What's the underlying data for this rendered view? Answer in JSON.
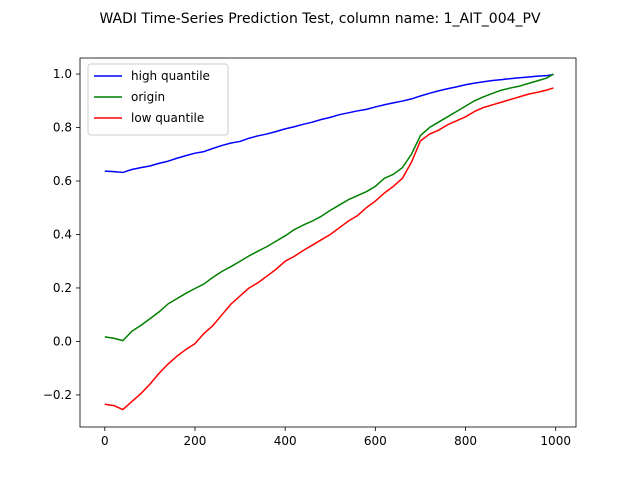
{
  "chart_data": {
    "type": "line",
    "title": "WADI Time-Series Prediction Test, column name: 1_AIT_004_PV",
    "xlabel": "",
    "ylabel": "",
    "xlim": [
      -55,
      1045
    ],
    "ylim": [
      -0.32,
      1.06
    ],
    "x_ticks": [
      0,
      200,
      400,
      600,
      800,
      1000
    ],
    "x_tick_labels": [
      "0",
      "200",
      "400",
      "600",
      "800",
      "1000"
    ],
    "y_ticks": [
      -0.2,
      0.0,
      0.2,
      0.4,
      0.6,
      0.8,
      1.0
    ],
    "y_tick_labels": [
      "−0.2",
      "0.0",
      "0.2",
      "0.4",
      "0.6",
      "0.8",
      "1.0"
    ],
    "grid": false,
    "legend_position": "top-left",
    "series": [
      {
        "name": "high quantile",
        "color": "#0000ff",
        "x": [
          0,
          20,
          40,
          60,
          80,
          100,
          120,
          140,
          160,
          180,
          200,
          220,
          240,
          260,
          280,
          300,
          320,
          340,
          360,
          380,
          400,
          420,
          440,
          460,
          480,
          500,
          520,
          540,
          560,
          580,
          600,
          620,
          640,
          660,
          680,
          700,
          720,
          740,
          760,
          780,
          800,
          820,
          840,
          860,
          880,
          900,
          920,
          940,
          960,
          980,
          995
        ],
        "values": [
          0.637,
          0.635,
          0.632,
          0.643,
          0.65,
          0.656,
          0.666,
          0.674,
          0.685,
          0.695,
          0.704,
          0.71,
          0.722,
          0.733,
          0.742,
          0.748,
          0.76,
          0.769,
          0.776,
          0.785,
          0.795,
          0.803,
          0.812,
          0.82,
          0.83,
          0.838,
          0.848,
          0.855,
          0.862,
          0.868,
          0.877,
          0.885,
          0.892,
          0.899,
          0.907,
          0.918,
          0.928,
          0.937,
          0.945,
          0.952,
          0.96,
          0.966,
          0.971,
          0.976,
          0.979,
          0.983,
          0.986,
          0.989,
          0.992,
          0.994,
          0.998
        ]
      },
      {
        "name": "origin",
        "color": "#008000",
        "x": [
          0,
          20,
          40,
          60,
          80,
          100,
          120,
          140,
          160,
          180,
          200,
          220,
          240,
          260,
          280,
          300,
          320,
          340,
          360,
          380,
          400,
          420,
          440,
          460,
          480,
          500,
          520,
          540,
          560,
          580,
          600,
          620,
          640,
          660,
          680,
          700,
          720,
          740,
          760,
          780,
          800,
          820,
          840,
          860,
          880,
          900,
          920,
          940,
          960,
          980,
          995
        ],
        "values": [
          0.017,
          0.012,
          0.003,
          0.038,
          0.06,
          0.085,
          0.11,
          0.14,
          0.16,
          0.18,
          0.198,
          0.215,
          0.24,
          0.262,
          0.28,
          0.3,
          0.32,
          0.338,
          0.355,
          0.375,
          0.395,
          0.418,
          0.435,
          0.45,
          0.468,
          0.49,
          0.51,
          0.53,
          0.545,
          0.56,
          0.58,
          0.61,
          0.625,
          0.65,
          0.7,
          0.77,
          0.8,
          0.82,
          0.84,
          0.86,
          0.88,
          0.9,
          0.915,
          0.928,
          0.94,
          0.948,
          0.955,
          0.965,
          0.975,
          0.985,
          1.0
        ]
      },
      {
        "name": "low quantile",
        "color": "#ff0000",
        "x": [
          0,
          20,
          40,
          60,
          80,
          100,
          120,
          140,
          160,
          180,
          200,
          220,
          240,
          260,
          280,
          300,
          320,
          340,
          360,
          380,
          400,
          420,
          440,
          460,
          480,
          500,
          520,
          540,
          560,
          580,
          600,
          620,
          640,
          660,
          680,
          700,
          720,
          740,
          760,
          780,
          800,
          820,
          840,
          860,
          880,
          900,
          920,
          940,
          960,
          980,
          995
        ],
        "values": [
          -0.235,
          -0.24,
          -0.255,
          -0.225,
          -0.195,
          -0.16,
          -0.12,
          -0.085,
          -0.055,
          -0.03,
          -0.008,
          0.03,
          0.06,
          0.1,
          0.14,
          0.17,
          0.2,
          0.22,
          0.245,
          0.27,
          0.3,
          0.318,
          0.34,
          0.36,
          0.38,
          0.4,
          0.425,
          0.45,
          0.47,
          0.5,
          0.525,
          0.555,
          0.58,
          0.61,
          0.67,
          0.75,
          0.775,
          0.79,
          0.81,
          0.825,
          0.84,
          0.86,
          0.875,
          0.885,
          0.895,
          0.905,
          0.915,
          0.925,
          0.932,
          0.94,
          0.948
        ]
      }
    ]
  }
}
